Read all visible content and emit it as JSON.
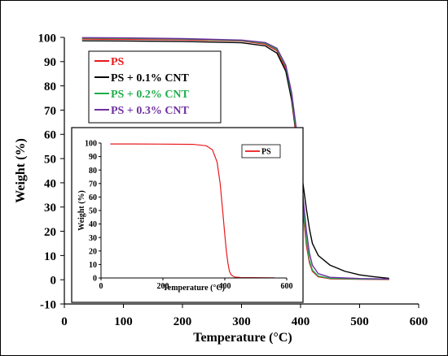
{
  "chart_data": [
    {
      "type": "line",
      "title": "",
      "xlabel": "Temperature (°C)",
      "ylabel": "Weight (%)",
      "xlim": [
        0,
        600
      ],
      "ylim": [
        -10,
        100
      ],
      "x_ticks": [
        0,
        100,
        200,
        300,
        400,
        500,
        600
      ],
      "y_ticks": [
        -10,
        0,
        10,
        20,
        30,
        40,
        50,
        60,
        70,
        80,
        90,
        100
      ],
      "grid": false,
      "legend": "top-left",
      "series": [
        {
          "name": "PS",
          "color": "#e8191c",
          "points": [
            [
              30,
              99.3
            ],
            [
              100,
              99.2
            ],
            [
              200,
              99.0
            ],
            [
              300,
              98.5
            ],
            [
              340,
              97.2
            ],
            [
              360,
              94.5
            ],
            [
              375,
              87
            ],
            [
              385,
              74
            ],
            [
              393,
              58
            ],
            [
              400,
              40
            ],
            [
              405,
              26
            ],
            [
              410,
              14
            ],
            [
              415,
              7
            ],
            [
              420,
              3.5
            ],
            [
              430,
              1.2
            ],
            [
              450,
              0.4
            ],
            [
              500,
              0.2
            ],
            [
              550,
              0.1
            ]
          ]
        },
        {
          "name": "PS + 0.1% CNT",
          "color": "#000000",
          "points": [
            [
              30,
              98.6
            ],
            [
              100,
              98.5
            ],
            [
              200,
              98.3
            ],
            [
              300,
              97.8
            ],
            [
              340,
              96.5
            ],
            [
              360,
              93.5
            ],
            [
              375,
              86
            ],
            [
              385,
              74
            ],
            [
              393,
              60
            ],
            [
              400,
              47
            ],
            [
              405,
              38
            ],
            [
              410,
              29
            ],
            [
              415,
              21
            ],
            [
              420,
              15
            ],
            [
              430,
              10
            ],
            [
              450,
              6
            ],
            [
              475,
              3.5
            ],
            [
              500,
              2.0
            ],
            [
              525,
              1.2
            ],
            [
              550,
              0.6
            ]
          ]
        },
        {
          "name": "PS + 0.2% CNT",
          "color": "#1fae4b",
          "points": [
            [
              30,
              99.7
            ],
            [
              100,
              99.6
            ],
            [
              200,
              99.3
            ],
            [
              300,
              98.7
            ],
            [
              340,
              97.6
            ],
            [
              360,
              95
            ],
            [
              375,
              88
            ],
            [
              385,
              76
            ],
            [
              393,
              60
            ],
            [
              400,
              42
            ],
            [
              405,
              28
            ],
            [
              410,
              16
            ],
            [
              415,
              8
            ],
            [
              420,
              4
            ],
            [
              430,
              1.5
            ],
            [
              450,
              0.6
            ],
            [
              500,
              0.3
            ],
            [
              550,
              0.2
            ]
          ]
        },
        {
          "name": "PS + 0.3% CNT",
          "color": "#7030a0",
          "points": [
            [
              30,
              99.9
            ],
            [
              100,
              99.8
            ],
            [
              200,
              99.5
            ],
            [
              300,
              98.9
            ],
            [
              340,
              97.9
            ],
            [
              360,
              95.5
            ],
            [
              375,
              88.5
            ],
            [
              385,
              77
            ],
            [
              393,
              62
            ],
            [
              400,
              45
            ],
            [
              405,
              32
            ],
            [
              410,
              20
            ],
            [
              415,
              11
            ],
            [
              420,
              6
            ],
            [
              430,
              2.5
            ],
            [
              450,
              1.0
            ],
            [
              500,
              0.5
            ],
            [
              550,
              0.3
            ]
          ]
        }
      ]
    },
    {
      "type": "line",
      "title": "",
      "xlabel": "Temperature (°C)",
      "ylabel": "Weight (%)",
      "xlim": [
        0,
        600
      ],
      "ylim": [
        0,
        100
      ],
      "x_ticks": [
        0,
        200,
        400,
        600
      ],
      "y_ticks": [
        0,
        10,
        20,
        30,
        40,
        50,
        60,
        70,
        80,
        90,
        100
      ],
      "grid": false,
      "legend": "top-right",
      "series": [
        {
          "name": "PS",
          "color": "#e8191c",
          "points": [
            [
              30,
              99.3
            ],
            [
              100,
              99.3
            ],
            [
              200,
              99.2
            ],
            [
              300,
              99.0
            ],
            [
              340,
              98
            ],
            [
              360,
              95
            ],
            [
              375,
              86
            ],
            [
              385,
              70
            ],
            [
              393,
              50
            ],
            [
              400,
              32
            ],
            [
              405,
              20
            ],
            [
              410,
              11
            ],
            [
              415,
              5
            ],
            [
              420,
              2.5
            ],
            [
              430,
              0.8
            ],
            [
              450,
              0.3
            ],
            [
              560,
              0.1
            ]
          ]
        }
      ]
    }
  ]
}
